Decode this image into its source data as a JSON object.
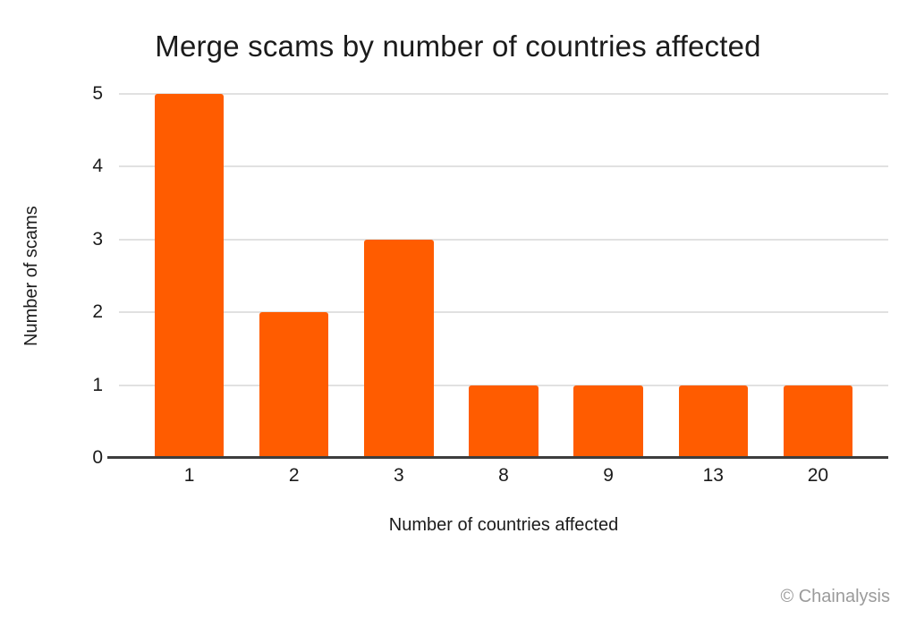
{
  "chart_data": {
    "type": "bar",
    "title": "Merge scams by number of countries affected",
    "xlabel": "Number of countries affected",
    "ylabel": "Number of scams",
    "categories": [
      "1",
      "2",
      "3",
      "8",
      "9",
      "13",
      "20"
    ],
    "values": [
      5,
      2,
      3,
      1,
      1,
      1,
      1
    ],
    "ylim": [
      0,
      5
    ],
    "yticks": [
      0,
      1,
      2,
      3,
      4,
      5
    ],
    "grid": true,
    "legend": false,
    "watermark": "© Chainalysis",
    "colors": {
      "bar": "#FF5C00",
      "gridline": "#E1E1E1",
      "axis_line": "#3D3D3D",
      "text": "#1B1B1B",
      "watermark": "#9B9B9B",
      "background": "#FFFFFF"
    }
  }
}
